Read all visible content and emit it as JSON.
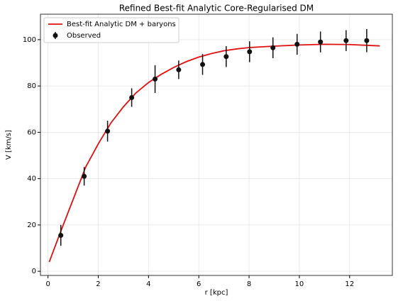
{
  "chart_data": {
    "type": "line",
    "title": "Refined Best-fit Analytic Core-Regularised DM",
    "x_label": "r [kpc]",
    "y_label": "V [km/s]",
    "xlim": [
      -0.3,
      13.7
    ],
    "ylim": [
      -1.8,
      111
    ],
    "xticks": [
      0,
      2,
      4,
      6,
      8,
      10,
      12
    ],
    "yticks": [
      0,
      20,
      40,
      60,
      80,
      100
    ],
    "grid": true,
    "legend": "upper left",
    "series": [
      {
        "name": "Best-fit Analytic DM + baryons",
        "type": "line",
        "color": "#e01010",
        "x": [
          0.05,
          0.5,
          1,
          1.5,
          2,
          2.5,
          3,
          3.5,
          4,
          4.5,
          5,
          5.5,
          6,
          6.5,
          7,
          7.5,
          8,
          9,
          10,
          11,
          12,
          13.2
        ],
        "values": [
          4,
          17,
          31,
          45,
          55,
          64,
          71,
          77,
          81.5,
          85,
          88,
          90.5,
          92.5,
          94,
          95.2,
          96,
          96.6,
          97.2,
          97.7,
          98,
          97.9,
          97.3
        ]
      },
      {
        "name": "Observed",
        "type": "errorbar",
        "color": "#111111",
        "x": [
          0.51,
          1.44,
          2.37,
          3.33,
          4.26,
          5.2,
          6.15,
          7.09,
          8.02,
          8.95,
          9.91,
          10.84,
          11.86,
          12.68
        ],
        "values": [
          15.5,
          41,
          60.5,
          75,
          83,
          87,
          89.3,
          92.7,
          94.8,
          96.5,
          98,
          99,
          99.6,
          99.6
        ],
        "errors": [
          4.5,
          4,
          4.5,
          4,
          6,
          4,
          4.5,
          4.5,
          4.5,
          4.5,
          4.5,
          4.5,
          4.5,
          5
        ]
      }
    ]
  }
}
